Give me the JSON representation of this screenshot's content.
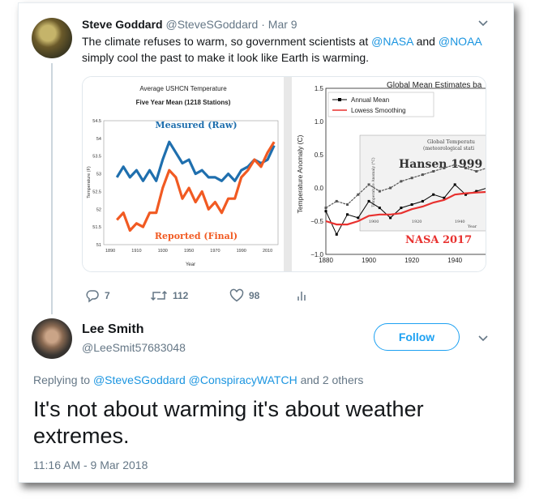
{
  "tweet": {
    "author_name": "Steve Goddard",
    "author_handle": "@SteveSGoddard",
    "separator": "·",
    "date": "Mar 9",
    "text_before": "The climate refuses to warm, so government scientists at ",
    "mention1": "@NASA",
    "text_and": " and ",
    "mention2": "@NOAA",
    "text_after": " simply cool the past to make it look like Earth is warming.",
    "reply_count": "7",
    "retweet_count": "112",
    "like_count": "98"
  },
  "chart_left": {
    "title": "Average USHCN Temperature",
    "subtitle": "Five Year Mean (1218 Stations)",
    "label_measured": "Measured (Raw)",
    "label_reported": "Reported (Final)",
    "ylabel": "Temperature (F)",
    "xlabel": "Year",
    "yticks": [
      "54.5",
      "54",
      "53.5",
      "53",
      "52.5",
      "52",
      "51.5",
      "51"
    ],
    "xticks": [
      "1890",
      "1910",
      "1930",
      "1950",
      "1970",
      "1990",
      "2010"
    ]
  },
  "chart_right": {
    "title": "Global Mean Estimates ba",
    "legend_annual": "Annual Mean",
    "legend_lowess": "Lowess Smoothing",
    "ylabel": "Temperature Anomaly (C)",
    "yticks": [
      "1.5",
      "1.0",
      "0.5",
      "0.0",
      "−0.5",
      "−1.0"
    ],
    "xticks": [
      "1880",
      "1900",
      "1920",
      "1940"
    ],
    "inset_title1": "Global Temperatu",
    "inset_title2": "(meteorological stati",
    "inset_ylabel": "Temperature Anomaly (°C)",
    "inset_xlabel": "Year",
    "inset_xticks": [
      "1900",
      "1920",
      "1940"
    ],
    "label_hansen": "Hansen 1999",
    "label_nasa": "NASA 2017"
  },
  "chart_data": [
    {
      "type": "line",
      "title": "Average USHCN Temperature",
      "subtitle": "Five Year Mean (1218 Stations)",
      "xlabel": "Year",
      "ylabel": "Temperature (F)",
      "xlim": [
        1885,
        2018
      ],
      "ylim": [
        51,
        54.5
      ],
      "x": [
        1895,
        1900,
        1905,
        1910,
        1915,
        1920,
        1925,
        1930,
        1935,
        1940,
        1945,
        1950,
        1955,
        1960,
        1965,
        1970,
        1975,
        1980,
        1985,
        1990,
        1995,
        2000,
        2005,
        2010,
        2015
      ],
      "series": [
        {
          "name": "Measured (Raw)",
          "color": "#1f6fae",
          "values": [
            52.9,
            53.2,
            52.9,
            53.1,
            52.8,
            53.1,
            52.8,
            53.4,
            53.9,
            53.6,
            53.3,
            53.4,
            53.0,
            53.1,
            52.9,
            52.9,
            52.8,
            53.0,
            52.8,
            53.1,
            53.2,
            53.4,
            53.3,
            53.4,
            53.8
          ]
        },
        {
          "name": "Reported (Final)",
          "color": "#f15a22",
          "values": [
            51.7,
            51.9,
            51.4,
            51.6,
            51.5,
            51.9,
            51.9,
            52.6,
            53.1,
            52.9,
            52.3,
            52.6,
            52.2,
            52.5,
            52.0,
            52.2,
            51.9,
            52.3,
            52.3,
            52.9,
            53.1,
            53.4,
            53.2,
            53.6,
            53.9
          ]
        }
      ]
    },
    {
      "type": "line",
      "title": "Global Mean Estimates ba",
      "ylabel": "Temperature Anomaly (C)",
      "xlim": [
        1880,
        1955
      ],
      "ylim": [
        -1.0,
        1.5
      ],
      "x": [
        1880,
        1885,
        1890,
        1895,
        1900,
        1905,
        1910,
        1915,
        1920,
        1925,
        1930,
        1935,
        1940,
        1945,
        1950,
        1955
      ],
      "series": [
        {
          "name": "Annual Mean",
          "color": "#000000",
          "values": [
            -0.35,
            -0.7,
            -0.4,
            -0.45,
            -0.2,
            -0.3,
            -0.45,
            -0.3,
            -0.25,
            -0.2,
            -0.1,
            -0.15,
            0.05,
            -0.1,
            -0.05,
            0.0
          ]
        },
        {
          "name": "Lowess Smoothing",
          "color": "#e8312f",
          "values": [
            -0.5,
            -0.55,
            -0.55,
            -0.5,
            -0.42,
            -0.4,
            -0.4,
            -0.38,
            -0.32,
            -0.28,
            -0.22,
            -0.18,
            -0.1,
            -0.08,
            -0.07,
            -0.06
          ]
        },
        {
          "name": "Hansen 1999",
          "color": "#555555",
          "values": [
            -0.3,
            -0.2,
            -0.25,
            -0.1,
            0.05,
            -0.05,
            0.0,
            0.1,
            0.15,
            0.2,
            0.25,
            0.3,
            0.35,
            0.3,
            0.25,
            0.3
          ]
        }
      ]
    }
  ],
  "reply": {
    "author_name": "Lee Smith",
    "author_handle": "@LeeSmit57683048",
    "follow_label": "Follow",
    "replying_prefix": "Replying to ",
    "replying_to1": "@SteveSGoddard",
    "replying_to2": "@ConspiracyWATCH",
    "replying_suffix": " and 2 others",
    "text": "It's not about warming it's about weather extremes.",
    "timestamp": "11:16 AM - 9 Mar 2018"
  },
  "icons": [
    "reply-icon",
    "retweet-icon",
    "like-icon",
    "analytics-icon",
    "chevron-down-icon"
  ]
}
